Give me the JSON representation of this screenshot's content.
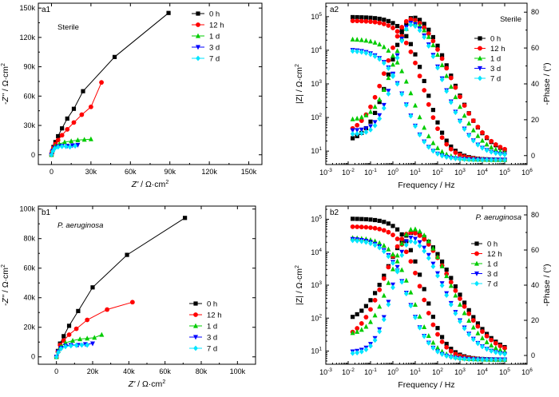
{
  "series_styles": [
    {
      "name": "0 h",
      "color": "#000000",
      "marker": "square"
    },
    {
      "name": "12 h",
      "color": "#ff0000",
      "marker": "circle"
    },
    {
      "name": "1 d",
      "color": "#00cc00",
      "marker": "triangle-up"
    },
    {
      "name": "3 d",
      "color": "#0000ff",
      "marker": "triangle-down"
    },
    {
      "name": "7 d",
      "color": "#00e5ff",
      "marker": "diamond"
    }
  ],
  "chart_data": [
    {
      "id": "a1",
      "type": "scatter",
      "panel_label": "a1",
      "condition": "Sterile",
      "xlabel_main": "Z'",
      "xlabel_unit": " / Ω·cm",
      "xlabel_sup": "2",
      "ylabel_main": "-Z''",
      "ylabel_unit": " / Ω·cm",
      "ylabel_sup": "2",
      "xlim": [
        -10000,
        160000
      ],
      "ylim": [
        -10000,
        155000
      ],
      "xticks": [
        0,
        30000,
        60000,
        90000,
        120000,
        150000
      ],
      "xticklabels": [
        "0",
        "30k",
        "60k",
        "90k",
        "120k",
        "150k"
      ],
      "yticks": [
        0,
        30000,
        60000,
        90000,
        120000,
        150000
      ],
      "yticklabels": [
        "0",
        "30k",
        "60k",
        "90k",
        "120k",
        "150k"
      ],
      "legend": [
        "0 h",
        "12 h",
        "1 d",
        "3 d",
        "7 d"
      ],
      "series": [
        {
          "name": "0 h",
          "x": [
            0,
            500,
            1500,
            3000,
            5000,
            8000,
            12000,
            17000,
            24000,
            48000,
            89000
          ],
          "y": [
            0,
            3000,
            8000,
            13000,
            19000,
            27000,
            37000,
            47000,
            65000,
            100000,
            145000
          ]
        },
        {
          "name": "12 h",
          "x": [
            0,
            500,
            1500,
            3000,
            5000,
            8000,
            12000,
            17000,
            23000,
            30000,
            38000
          ],
          "y": [
            0,
            3000,
            7000,
            11000,
            15000,
            20000,
            26000,
            33000,
            41000,
            49000,
            74000
          ]
        },
        {
          "name": "1 d",
          "x": [
            0,
            1000,
            3000,
            6000,
            10000,
            15000,
            20000,
            25000,
            30000
          ],
          "y": [
            0,
            5000,
            9000,
            11000,
            13000,
            14000,
            15000,
            15500,
            16000
          ]
        },
        {
          "name": "3 d",
          "x": [
            0,
            1000,
            2500,
            5000,
            8000,
            12000,
            16000,
            20000
          ],
          "y": [
            0,
            4000,
            7000,
            8500,
            9000,
            9000,
            9500,
            10000
          ]
        },
        {
          "name": "7 d",
          "x": [
            0,
            1000,
            2500,
            5000,
            8000,
            11000,
            14000,
            18000
          ],
          "y": [
            0,
            3500,
            6500,
            8000,
            8500,
            8500,
            8000,
            9000
          ]
        }
      ]
    },
    {
      "id": "a2",
      "type": "scatter",
      "panel_label": "a2",
      "condition": "Sterile",
      "xlabel": "Frequency / Hz",
      "ylabel_left_main": "|Z| / Ω·cm",
      "ylabel_left_sup": "2",
      "ylabel_right": "-Phase / (°)",
      "xlim_log10": [
        -3,
        6
      ],
      "yleft_lim_log10": [
        0.6,
        5.4
      ],
      "yright_lim": [
        -5,
        85
      ],
      "xtick_exponents": [
        -3,
        -2,
        -1,
        0,
        1,
        2,
        3,
        4,
        5,
        6
      ],
      "ytick_exponents": [
        1,
        2,
        3,
        4,
        5
      ],
      "yright_ticks": [
        0,
        20,
        40,
        60,
        80
      ],
      "yright_ticklabels": [
        "0",
        "20",
        "40",
        "60",
        "80"
      ],
      "legend": [
        "0 h",
        "12 h",
        "1 d",
        "3 d",
        "7 d"
      ],
      "series": [
        {
          "name": "0 h",
          "impedance_log_z": {
            "lf": 4.99,
            "hf": 0.74,
            "fc": 1.5,
            "n": 0.9
          },
          "phase": {
            "peak_deg": 77,
            "peak_log_f": 0.9,
            "start_deg": 8,
            "width": 1.4
          }
        },
        {
          "name": "12 h",
          "impedance_log_z": {
            "lf": 4.88,
            "hf": 0.74,
            "fc": 1.4,
            "n": 0.9
          },
          "phase": {
            "peak_deg": 76,
            "peak_log_f": 0.8,
            "start_deg": 12,
            "width": 1.5
          }
        },
        {
          "name": "1 d",
          "impedance_log_z": {
            "lf": 4.34,
            "hf": 0.74,
            "fc": 0.9,
            "n": 0.88
          },
          "phase": {
            "peak_deg": 74,
            "peak_log_f": 0.9,
            "start_deg": 20,
            "width": 1.2
          }
        },
        {
          "name": "3 d",
          "impedance_log_z": {
            "lf": 4.03,
            "hf": 0.74,
            "fc": 0.6,
            "n": 0.88
          },
          "phase": {
            "peak_deg": 74,
            "peak_log_f": 0.8,
            "start_deg": 14,
            "width": 1.0
          }
        },
        {
          "name": "7 d",
          "impedance_log_z": {
            "lf": 4.0,
            "hf": 0.74,
            "fc": 0.6,
            "n": 0.88
          },
          "phase": {
            "peak_deg": 73,
            "peak_log_f": 0.8,
            "start_deg": 12,
            "width": 1.0
          }
        }
      ]
    },
    {
      "id": "b1",
      "type": "scatter",
      "panel_label": "b1",
      "condition": "P. aeruginosa",
      "xlabel_main": "Z'",
      "xlabel_unit": " / Ω·cm",
      "xlabel_sup": "2",
      "ylabel_main": "-Z''",
      "ylabel_unit": " / Ω·cm",
      "ylabel_sup": "2",
      "xlim": [
        -10000,
        110000
      ],
      "ylim": [
        -5000,
        102000
      ],
      "xticks": [
        0,
        20000,
        40000,
        60000,
        80000,
        100000
      ],
      "xticklabels": [
        "0",
        "20k",
        "40k",
        "60k",
        "80k",
        "100k"
      ],
      "yticks": [
        0,
        20000,
        40000,
        60000,
        80000,
        100000
      ],
      "yticklabels": [
        "0",
        "20k",
        "40k",
        "60k",
        "80k",
        "100k"
      ],
      "legend": [
        "0 h",
        "12 h",
        "1 d",
        "3 d",
        "7 d"
      ],
      "series": [
        {
          "name": "0 h",
          "x": [
            0,
            800,
            2000,
            4000,
            7000,
            12000,
            20000,
            39000,
            71000
          ],
          "y": [
            0,
            4000,
            9000,
            14000,
            21000,
            31000,
            47000,
            69000,
            94000
          ]
        },
        {
          "name": "12 h",
          "x": [
            0,
            800,
            2000,
            4000,
            7000,
            11000,
            17000,
            28000,
            42000
          ],
          "y": [
            0,
            3500,
            8000,
            11000,
            15000,
            19000,
            25000,
            32000,
            37000
          ]
        },
        {
          "name": "1 d",
          "x": [
            0,
            1000,
            2500,
            5000,
            9000,
            13000,
            17000,
            21000,
            25000
          ],
          "y": [
            0,
            4000,
            7000,
            9500,
            11000,
            12000,
            12500,
            13000,
            15000
          ]
        },
        {
          "name": "3 d",
          "x": [
            0,
            1000,
            2500,
            5000,
            8000,
            12000,
            16000,
            20000
          ],
          "y": [
            0,
            3500,
            6000,
            7500,
            8000,
            8000,
            8500,
            9000
          ]
        },
        {
          "name": "7 d",
          "x": [
            0,
            1000,
            2500,
            5000,
            8000,
            11000,
            14000,
            17000
          ],
          "y": [
            0,
            3000,
            5500,
            7000,
            7500,
            7800,
            8000,
            8000
          ]
        }
      ]
    },
    {
      "id": "b2",
      "type": "scatter",
      "panel_label": "b2",
      "condition": "P. aeruginosa",
      "xlabel": "Frequency / Hz",
      "ylabel_left_main": "|Z| / Ω·cm",
      "ylabel_left_sup": "2",
      "ylabel_right": "-Phase / (°)",
      "xlim_log10": [
        -3,
        6
      ],
      "yleft_lim_log10": [
        0.6,
        5.4
      ],
      "yright_lim": [
        -5,
        85
      ],
      "xtick_exponents": [
        -3,
        -2,
        -1,
        0,
        1,
        2,
        3,
        4,
        5,
        6
      ],
      "ytick_exponents": [
        1,
        2,
        3,
        4,
        5
      ],
      "yright_ticks": [
        0,
        20,
        40,
        60,
        80
      ],
      "yright_ticklabels": [
        "0",
        "20",
        "40",
        "60",
        "80"
      ],
      "legend": [
        "0 h",
        "12 h",
        "1 d",
        "3 d",
        "7 d"
      ],
      "series": [
        {
          "name": "0 h",
          "impedance_log_z": {
            "lf": 5.02,
            "hf": 0.74,
            "fc": 1.4,
            "n": 0.9
          },
          "phase": {
            "peak_deg": 70,
            "peak_log_f": 0.9,
            "start_deg": 19,
            "width": 1.6
          }
        },
        {
          "name": "12 h",
          "impedance_log_z": {
            "lf": 4.78,
            "hf": 0.74,
            "fc": 1.3,
            "n": 0.9
          },
          "phase": {
            "peak_deg": 70,
            "peak_log_f": 0.8,
            "start_deg": 9,
            "width": 1.6
          }
        },
        {
          "name": "1 d",
          "impedance_log_z": {
            "lf": 4.45,
            "hf": 0.74,
            "fc": 0.9,
            "n": 0.88
          },
          "phase": {
            "peak_deg": 72,
            "peak_log_f": 0.9,
            "start_deg": 12,
            "width": 1.3
          }
        },
        {
          "name": "3 d",
          "impedance_log_z": {
            "lf": 4.42,
            "hf": 0.74,
            "fc": 0.7,
            "n": 0.88
          },
          "phase": {
            "peak_deg": 67,
            "peak_log_f": 0.8,
            "start_deg": 2,
            "width": 1.1
          }
        },
        {
          "name": "7 d",
          "impedance_log_z": {
            "lf": 4.38,
            "hf": 0.74,
            "fc": 0.7,
            "n": 0.88
          },
          "phase": {
            "peak_deg": 65,
            "peak_log_f": 0.8,
            "start_deg": 1,
            "width": 1.1
          }
        }
      ]
    }
  ]
}
